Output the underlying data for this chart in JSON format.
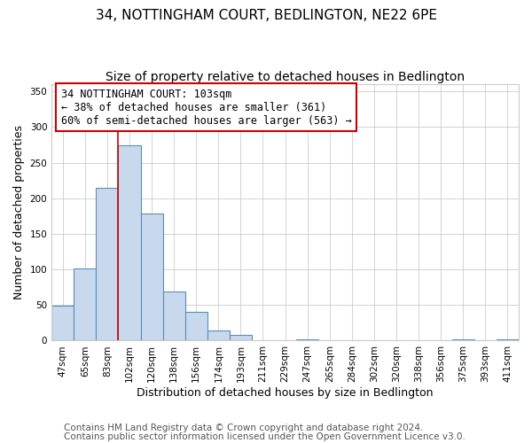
{
  "title": "34, NOTTINGHAM COURT, BEDLINGTON, NE22 6PE",
  "subtitle": "Size of property relative to detached houses in Bedlington",
  "xlabel": "Distribution of detached houses by size in Bedlington",
  "ylabel": "Number of detached properties",
  "footer_line1": "Contains HM Land Registry data © Crown copyright and database right 2024.",
  "footer_line2": "Contains public sector information licensed under the Open Government Licence v3.0.",
  "bar_labels": [
    "47sqm",
    "65sqm",
    "83sqm",
    "102sqm",
    "120sqm",
    "138sqm",
    "156sqm",
    "174sqm",
    "193sqm",
    "211sqm",
    "229sqm",
    "247sqm",
    "265sqm",
    "284sqm",
    "302sqm",
    "320sqm",
    "338sqm",
    "356sqm",
    "375sqm",
    "393sqm",
    "411sqm"
  ],
  "bar_values": [
    49,
    101,
    214,
    274,
    179,
    69,
    40,
    14,
    8,
    0,
    0,
    2,
    0,
    0,
    0,
    0,
    0,
    0,
    2,
    0,
    2
  ],
  "bar_color": "#c9d9ed",
  "bar_edge_color": "#5b8db8",
  "vline_index": 3,
  "vline_color": "#cc0000",
  "annotation_line1": "34 NOTTINGHAM COURT: 103sqm",
  "annotation_line2": "← 38% of detached houses are smaller (361)",
  "annotation_line3": "60% of semi-detached houses are larger (563) →",
  "ylim": [
    0,
    360
  ],
  "yticks": [
    0,
    50,
    100,
    150,
    200,
    250,
    300,
    350
  ],
  "background_color": "#ffffff",
  "grid_color": "#cccccc",
  "title_fontsize": 11,
  "subtitle_fontsize": 10,
  "xlabel_fontsize": 9,
  "ylabel_fontsize": 9,
  "tick_fontsize": 7.5,
  "annotation_fontsize": 8.5,
  "footer_fontsize": 7.5
}
